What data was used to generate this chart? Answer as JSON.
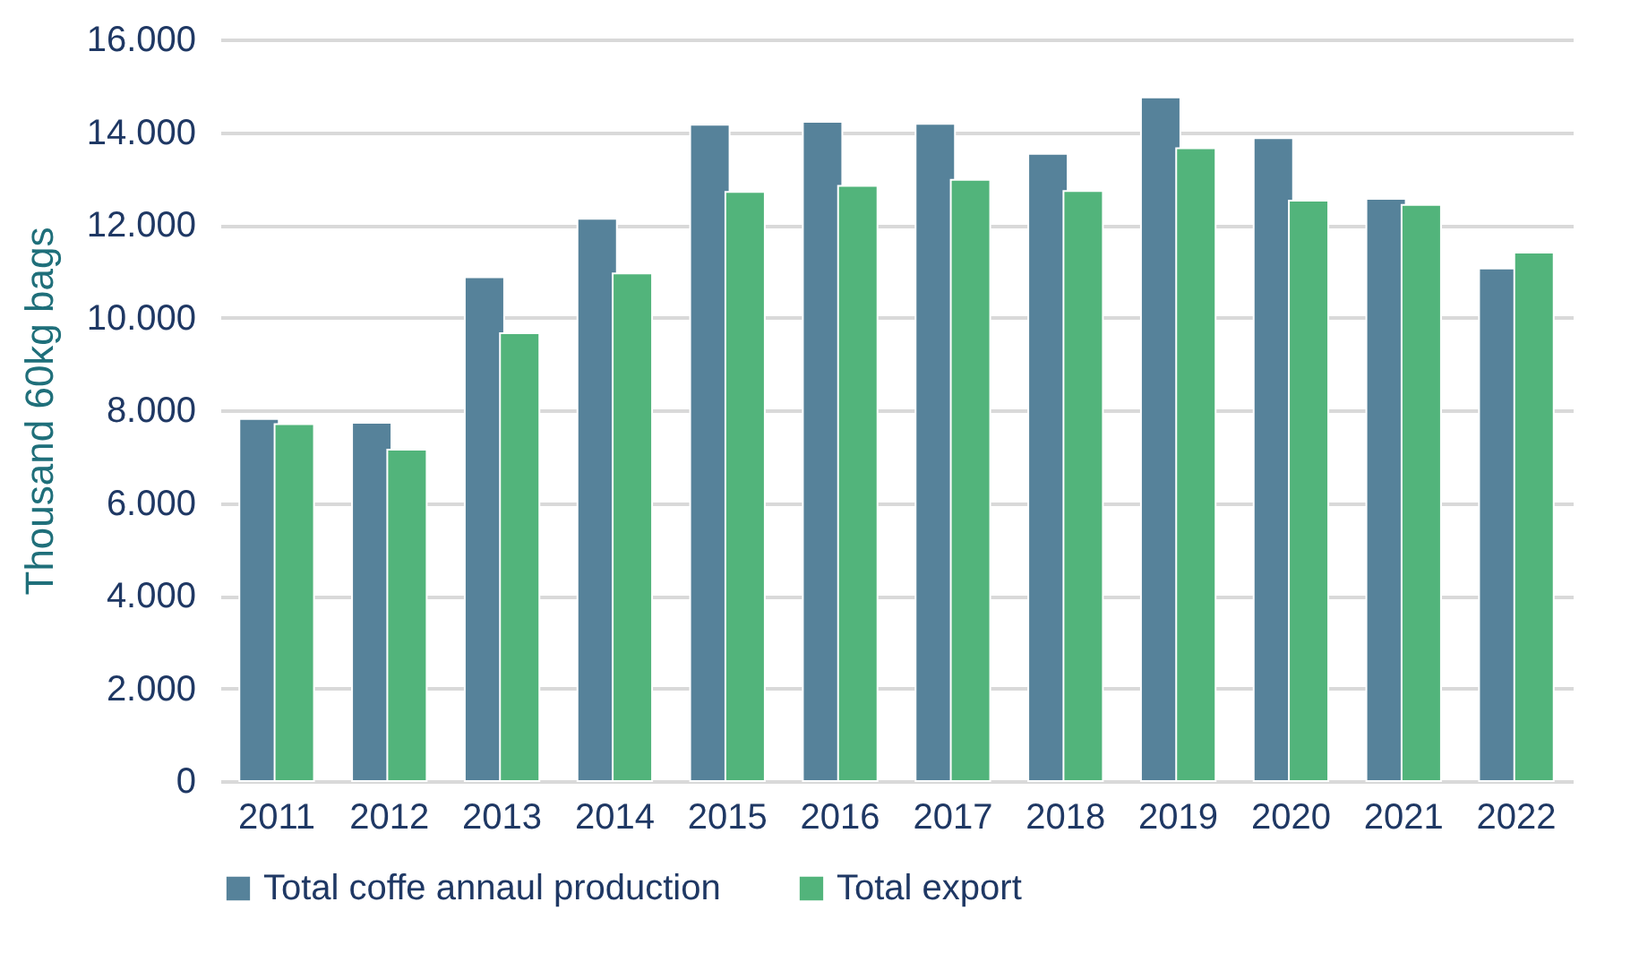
{
  "chart_data": {
    "type": "bar",
    "ylabel": "Thousand 60kg bags",
    "categories": [
      "2011",
      "2012",
      "2013",
      "2014",
      "2015",
      "2016",
      "2017",
      "2018",
      "2019",
      "2020",
      "2021",
      "2022"
    ],
    "series": [
      {
        "name": "Total coffe annaul production",
        "color": "#56829a",
        "values": [
          7810,
          7730,
          10870,
          12130,
          14160,
          14220,
          14180,
          13530,
          14750,
          13870,
          12560,
          11060
        ]
      },
      {
        "name": "Total export",
        "color": "#52b47b",
        "values": [
          7700,
          7150,
          9660,
          10950,
          12710,
          12840,
          12970,
          12730,
          13650,
          12520,
          12430,
          11400
        ]
      }
    ],
    "ylim": [
      0,
      16000
    ],
    "yticks": [
      {
        "value": 0,
        "label": "0"
      },
      {
        "value": 2000,
        "label": "2.000"
      },
      {
        "value": 4000,
        "label": "4.000"
      },
      {
        "value": 6000,
        "label": "6.000"
      },
      {
        "value": 8000,
        "label": "8.000"
      },
      {
        "value": 10000,
        "label": "10.000"
      },
      {
        "value": 12000,
        "label": "12.000"
      },
      {
        "value": 14000,
        "label": "14.000"
      },
      {
        "value": 16000,
        "label": "16.000"
      }
    ],
    "grid": "y",
    "legend": "bottom"
  }
}
